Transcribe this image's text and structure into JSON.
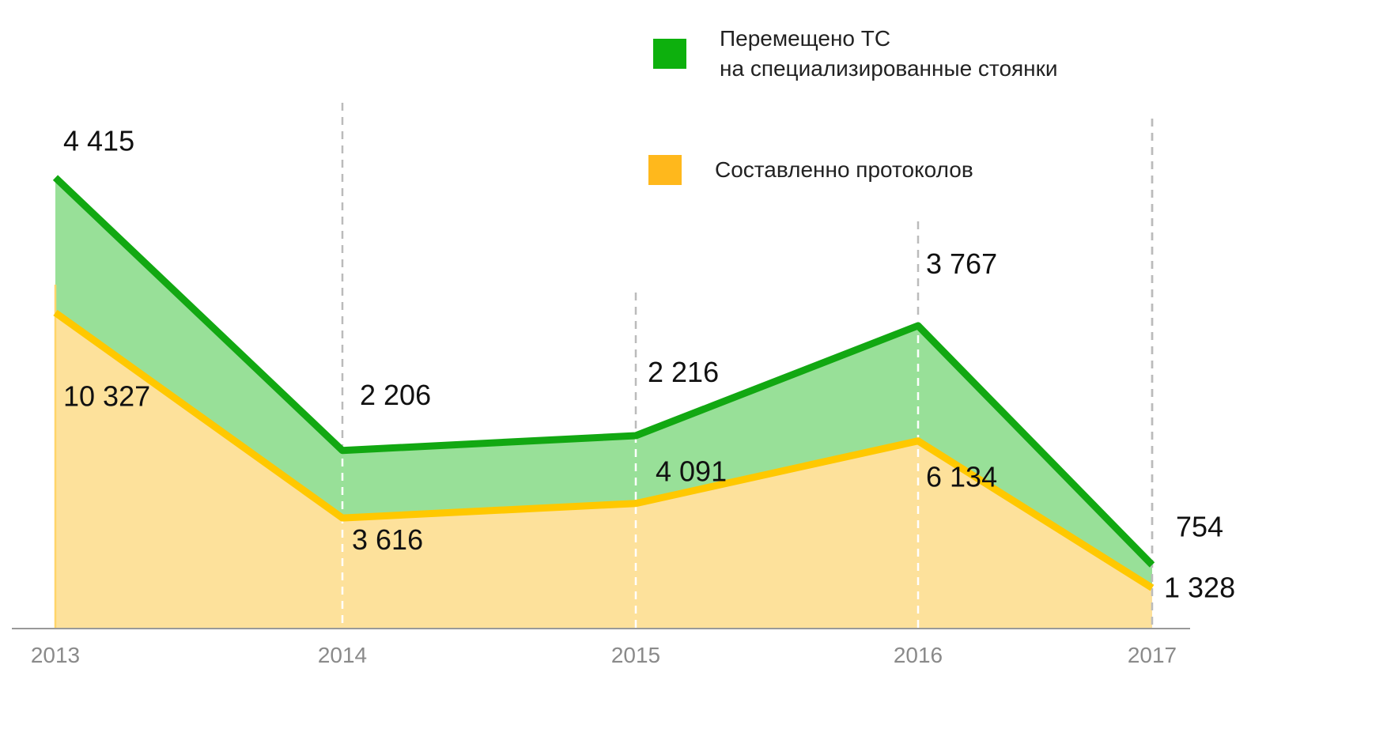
{
  "chart_data": {
    "type": "stacked_area",
    "categories": [
      "2013",
      "2014",
      "2015",
      "2016",
      "2017"
    ],
    "series": [
      {
        "name": "Составленно протоколов",
        "color": "#ffc800",
        "fill": "#fde19b",
        "values": [
          10327,
          3616,
          4091,
          6134,
          1328
        ],
        "value_labels": [
          "10 327",
          "3 616",
          "4 091",
          "6 134",
          "1 328"
        ]
      },
      {
        "name": "Перемещено ТС\nна специализированные стоянки",
        "color": "#12a812",
        "fill": "#98e098",
        "values": [
          4415,
          2206,
          2216,
          3767,
          754
        ],
        "value_labels": [
          "4  415",
          "2 206",
          "2 216",
          "3 767",
          "754"
        ]
      }
    ],
    "ylim": [
      0,
      16000
    ],
    "legend": "top-right"
  }
}
